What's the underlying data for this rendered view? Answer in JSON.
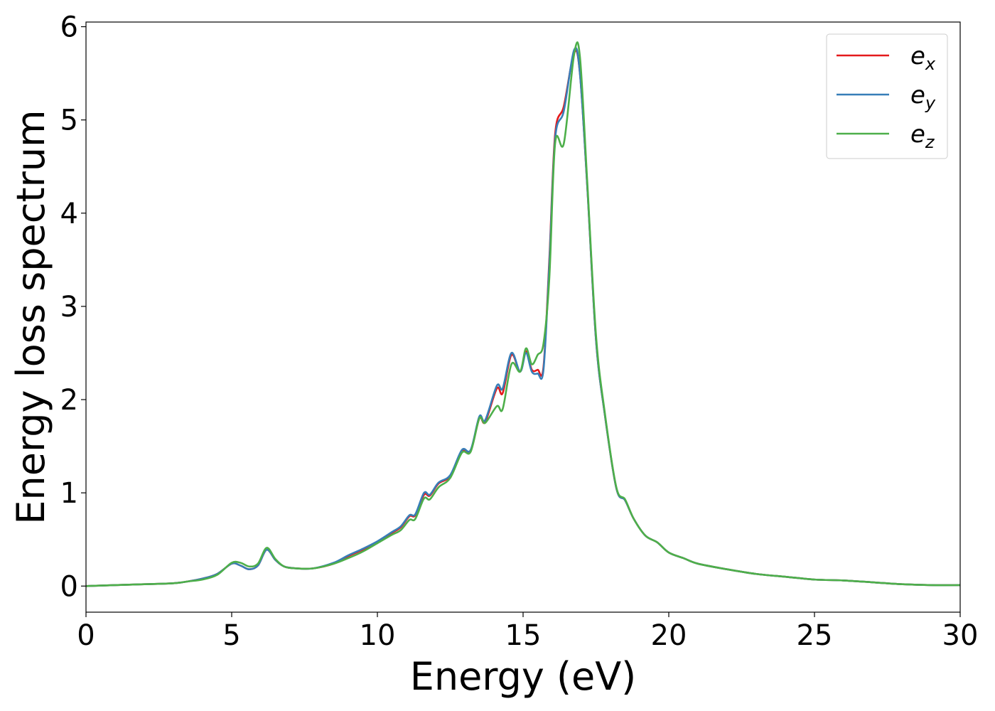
{
  "chart_data": {
    "type": "line",
    "xlabel": "Energy (eV)",
    "ylabel": "Energy loss spectrum",
    "xlim": [
      0,
      30
    ],
    "ylim": [
      -0.28,
      6.05
    ],
    "xticks": [
      0,
      5,
      10,
      15,
      20,
      25,
      30
    ],
    "yticks": [
      0,
      1,
      2,
      3,
      4,
      5,
      6
    ],
    "grid": false,
    "legend_position": "top-right",
    "series": [
      {
        "name": "e_x",
        "legend_base": "e",
        "legend_sub": "x",
        "color": "#e41a1c",
        "points": [
          [
            0,
            0
          ],
          [
            1,
            0.01
          ],
          [
            2,
            0.02
          ],
          [
            3,
            0.03
          ],
          [
            3.5,
            0.05
          ],
          [
            4,
            0.08
          ],
          [
            4.5,
            0.13
          ],
          [
            5,
            0.24
          ],
          [
            5.3,
            0.22
          ],
          [
            5.6,
            0.18
          ],
          [
            5.9,
            0.22
          ],
          [
            6.2,
            0.39
          ],
          [
            6.5,
            0.28
          ],
          [
            6.8,
            0.21
          ],
          [
            7.2,
            0.19
          ],
          [
            7.8,
            0.19
          ],
          [
            8.5,
            0.24
          ],
          [
            9,
            0.32
          ],
          [
            9.5,
            0.39
          ],
          [
            10,
            0.47
          ],
          [
            10.5,
            0.57
          ],
          [
            10.8,
            0.63
          ],
          [
            11.1,
            0.75
          ],
          [
            11.3,
            0.76
          ],
          [
            11.6,
            0.98
          ],
          [
            11.8,
            0.97
          ],
          [
            12.1,
            1.1
          ],
          [
            12.5,
            1.18
          ],
          [
            12.9,
            1.45
          ],
          [
            13.2,
            1.45
          ],
          [
            13.5,
            1.8
          ],
          [
            13.7,
            1.76
          ],
          [
            14.1,
            2.12
          ],
          [
            14.3,
            2.07
          ],
          [
            14.6,
            2.48
          ],
          [
            14.9,
            2.3
          ],
          [
            15.1,
            2.52
          ],
          [
            15.3,
            2.32
          ],
          [
            15.5,
            2.32
          ],
          [
            15.7,
            2.35
          ],
          [
            15.9,
            3.5
          ],
          [
            16.1,
            4.85
          ],
          [
            16.4,
            5.15
          ],
          [
            16.75,
            5.72
          ],
          [
            16.95,
            5.5
          ],
          [
            17.2,
            4.3
          ],
          [
            17.5,
            2.65
          ],
          [
            17.8,
            1.85
          ],
          [
            18.2,
            1.05
          ],
          [
            18.5,
            0.92
          ],
          [
            18.8,
            0.72
          ],
          [
            19.2,
            0.54
          ],
          [
            19.6,
            0.47
          ],
          [
            20,
            0.36
          ],
          [
            20.5,
            0.3
          ],
          [
            21,
            0.24
          ],
          [
            22,
            0.18
          ],
          [
            23,
            0.13
          ],
          [
            24,
            0.1
          ],
          [
            25,
            0.07
          ],
          [
            26,
            0.06
          ],
          [
            27,
            0.04
          ],
          [
            28,
            0.02
          ],
          [
            29,
            0.01
          ],
          [
            30,
            0.01
          ]
        ]
      },
      {
        "name": "e_y",
        "legend_base": "e",
        "legend_sub": "y",
        "color": "#377eb8",
        "points": [
          [
            0,
            0
          ],
          [
            1,
            0.01
          ],
          [
            2,
            0.02
          ],
          [
            3,
            0.03
          ],
          [
            3.5,
            0.05
          ],
          [
            4,
            0.08
          ],
          [
            4.5,
            0.13
          ],
          [
            5,
            0.24
          ],
          [
            5.3,
            0.22
          ],
          [
            5.6,
            0.18
          ],
          [
            5.9,
            0.22
          ],
          [
            6.2,
            0.39
          ],
          [
            6.5,
            0.28
          ],
          [
            6.8,
            0.21
          ],
          [
            7.2,
            0.19
          ],
          [
            7.8,
            0.19
          ],
          [
            8.5,
            0.25
          ],
          [
            9,
            0.33
          ],
          [
            9.5,
            0.4
          ],
          [
            10,
            0.48
          ],
          [
            10.5,
            0.58
          ],
          [
            10.8,
            0.64
          ],
          [
            11.1,
            0.76
          ],
          [
            11.3,
            0.77
          ],
          [
            11.6,
            1.0
          ],
          [
            11.8,
            0.98
          ],
          [
            12.1,
            1.11
          ],
          [
            12.5,
            1.19
          ],
          [
            12.9,
            1.46
          ],
          [
            13.2,
            1.46
          ],
          [
            13.5,
            1.82
          ],
          [
            13.7,
            1.78
          ],
          [
            14.1,
            2.15
          ],
          [
            14.3,
            2.12
          ],
          [
            14.6,
            2.5
          ],
          [
            14.9,
            2.3
          ],
          [
            15.1,
            2.5
          ],
          [
            15.3,
            2.3
          ],
          [
            15.5,
            2.28
          ],
          [
            15.7,
            2.32
          ],
          [
            15.9,
            3.45
          ],
          [
            16.1,
            4.8
          ],
          [
            16.4,
            5.1
          ],
          [
            16.75,
            5.75
          ],
          [
            16.95,
            5.5
          ],
          [
            17.2,
            4.3
          ],
          [
            17.5,
            2.65
          ],
          [
            17.8,
            1.85
          ],
          [
            18.2,
            1.05
          ],
          [
            18.5,
            0.92
          ],
          [
            18.8,
            0.72
          ],
          [
            19.2,
            0.54
          ],
          [
            19.6,
            0.47
          ],
          [
            20,
            0.36
          ],
          [
            20.5,
            0.3
          ],
          [
            21,
            0.24
          ],
          [
            22,
            0.18
          ],
          [
            23,
            0.13
          ],
          [
            24,
            0.1
          ],
          [
            25,
            0.07
          ],
          [
            26,
            0.06
          ],
          [
            27,
            0.04
          ],
          [
            28,
            0.02
          ],
          [
            29,
            0.01
          ],
          [
            30,
            0.01
          ]
        ]
      },
      {
        "name": "e_z",
        "legend_base": "e",
        "legend_sub": "z",
        "color": "#4daf4a",
        "points": [
          [
            0,
            0
          ],
          [
            1,
            0.01
          ],
          [
            2,
            0.02
          ],
          [
            3,
            0.03
          ],
          [
            3.5,
            0.05
          ],
          [
            4,
            0.07
          ],
          [
            4.5,
            0.12
          ],
          [
            5,
            0.25
          ],
          [
            5.3,
            0.25
          ],
          [
            5.6,
            0.21
          ],
          [
            5.9,
            0.24
          ],
          [
            6.2,
            0.41
          ],
          [
            6.5,
            0.29
          ],
          [
            6.8,
            0.21
          ],
          [
            7.2,
            0.19
          ],
          [
            7.8,
            0.19
          ],
          [
            8.5,
            0.24
          ],
          [
            9,
            0.3
          ],
          [
            9.5,
            0.37
          ],
          [
            10,
            0.46
          ],
          [
            10.5,
            0.55
          ],
          [
            10.8,
            0.6
          ],
          [
            11.1,
            0.71
          ],
          [
            11.3,
            0.72
          ],
          [
            11.6,
            0.94
          ],
          [
            11.8,
            0.93
          ],
          [
            12.1,
            1.06
          ],
          [
            12.5,
            1.16
          ],
          [
            12.9,
            1.43
          ],
          [
            13.2,
            1.44
          ],
          [
            13.5,
            1.8
          ],
          [
            13.7,
            1.75
          ],
          [
            14.1,
            1.93
          ],
          [
            14.3,
            1.9
          ],
          [
            14.6,
            2.38
          ],
          [
            14.9,
            2.3
          ],
          [
            15.1,
            2.55
          ],
          [
            15.3,
            2.38
          ],
          [
            15.5,
            2.48
          ],
          [
            15.7,
            2.6
          ],
          [
            15.9,
            3.3
          ],
          [
            16.1,
            4.75
          ],
          [
            16.4,
            4.75
          ],
          [
            16.75,
            5.7
          ],
          [
            16.95,
            5.68
          ],
          [
            17.2,
            4.35
          ],
          [
            17.5,
            2.7
          ],
          [
            17.8,
            1.87
          ],
          [
            18.2,
            1.06
          ],
          [
            18.5,
            0.93
          ],
          [
            18.8,
            0.72
          ],
          [
            19.2,
            0.54
          ],
          [
            19.6,
            0.47
          ],
          [
            20,
            0.36
          ],
          [
            20.5,
            0.3
          ],
          [
            21,
            0.24
          ],
          [
            22,
            0.18
          ],
          [
            23,
            0.13
          ],
          [
            24,
            0.1
          ],
          [
            25,
            0.07
          ],
          [
            26,
            0.06
          ],
          [
            27,
            0.04
          ],
          [
            28,
            0.02
          ],
          [
            29,
            0.01
          ],
          [
            30,
            0.01
          ]
        ]
      }
    ]
  }
}
